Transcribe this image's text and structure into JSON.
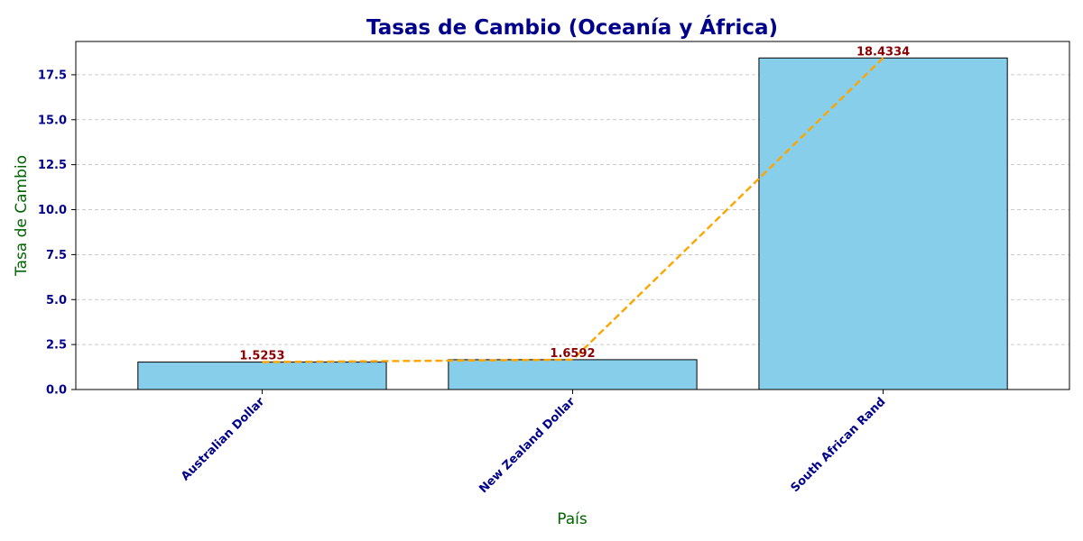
{
  "colors": {
    "title": "#00008b",
    "axis_label": "#006400",
    "tick": "#00008b",
    "bar_fill": "#87ceeb",
    "bar_edge": "#000000",
    "line": "#ffa500",
    "data_label": "#8b0000",
    "grid": "#bbbbbb"
  },
  "chart_data": {
    "type": "bar",
    "title": "Tasas de Cambio (Oceanía y África)",
    "xlabel": "País",
    "ylabel": "Tasa de Cambio",
    "categories": [
      "Australian Dollar",
      "New Zealand Dollar",
      "South African Rand"
    ],
    "values": [
      1.5253,
      1.6592,
      18.4334
    ],
    "value_labels": [
      "1.5253",
      "1.6592",
      "18.4334"
    ],
    "overlay_line": {
      "style": "dashed",
      "values": [
        1.5253,
        1.6592,
        18.4334
      ]
    },
    "ylim": [
      0,
      19.35
    ],
    "yticks": [
      0,
      2.5,
      5,
      7.5,
      10,
      12.5,
      15,
      17.5
    ],
    "ytick_labels": [
      "0.0",
      "2.5",
      "5.0",
      "7.5",
      "10.0",
      "12.5",
      "15.0",
      "17.5"
    ],
    "grid": {
      "axis": "y",
      "style": "dashed"
    }
  }
}
